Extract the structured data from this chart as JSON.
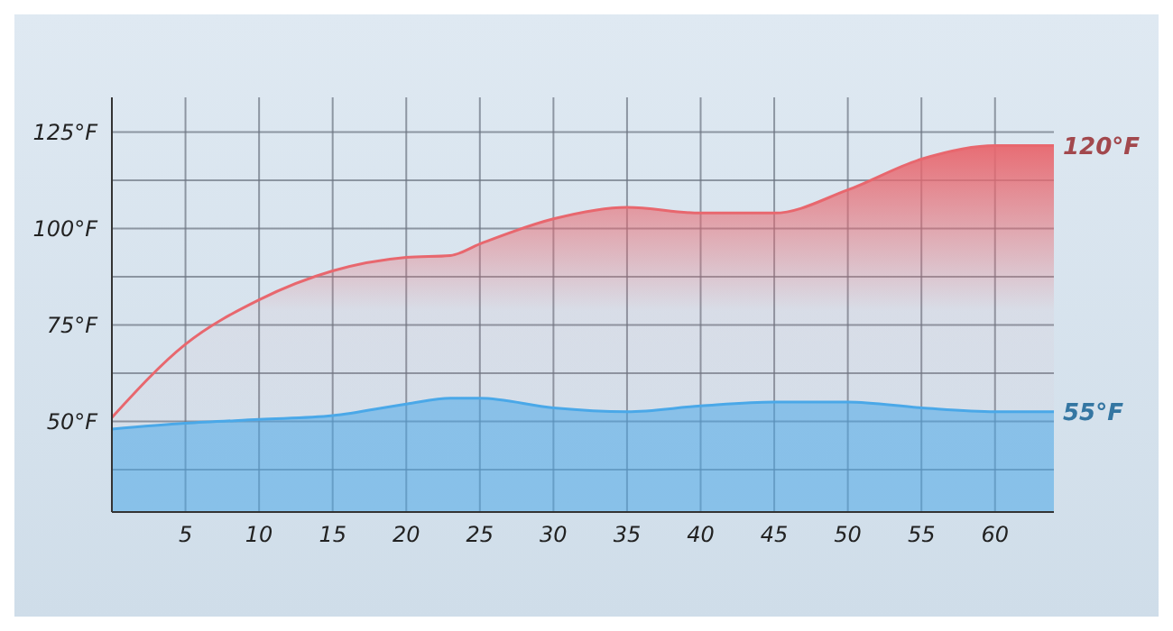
{
  "chart_data": {
    "type": "area",
    "x": [
      0,
      5,
      10,
      15,
      20,
      23,
      25,
      30,
      35,
      40,
      45,
      50,
      55,
      60,
      64
    ],
    "series": [
      {
        "color": "#e8676e",
        "values": [
          51,
          70,
          81.5,
          89,
          92.5,
          93,
          96,
          102.5,
          105.5,
          104,
          104,
          110,
          118,
          121.5,
          121.5
        ]
      },
      {
        "color": "#4aa8e8",
        "values": [
          48,
          49.5,
          50.5,
          51.5,
          54.5,
          56,
          56,
          53.5,
          52.5,
          54,
          55,
          55,
          53.5,
          52.5,
          52.5
        ]
      }
    ],
    "xlim": [
      0,
      64
    ],
    "xticks": [
      5,
      10,
      15,
      20,
      25,
      30,
      35,
      40,
      45,
      50,
      55,
      60
    ],
    "ylim": [
      26.5,
      134
    ],
    "yticks": [
      {
        "value": 37.5,
        "label": null
      },
      {
        "value": 50,
        "label": "50°F"
      },
      {
        "value": 62.5,
        "label": null
      },
      {
        "value": 75,
        "label": "75°F"
      },
      {
        "value": 87.5,
        "label": null
      },
      {
        "value": 100,
        "label": "100°F"
      },
      {
        "value": 112.5,
        "label": null
      },
      {
        "value": 125,
        "label": "125°F"
      }
    ],
    "grid": true,
    "annotations": [
      {
        "text": "120°F",
        "x": 64,
        "y": 121.5
      },
      {
        "text": "55°F",
        "x": 64,
        "y": 52.5
      }
    ]
  }
}
